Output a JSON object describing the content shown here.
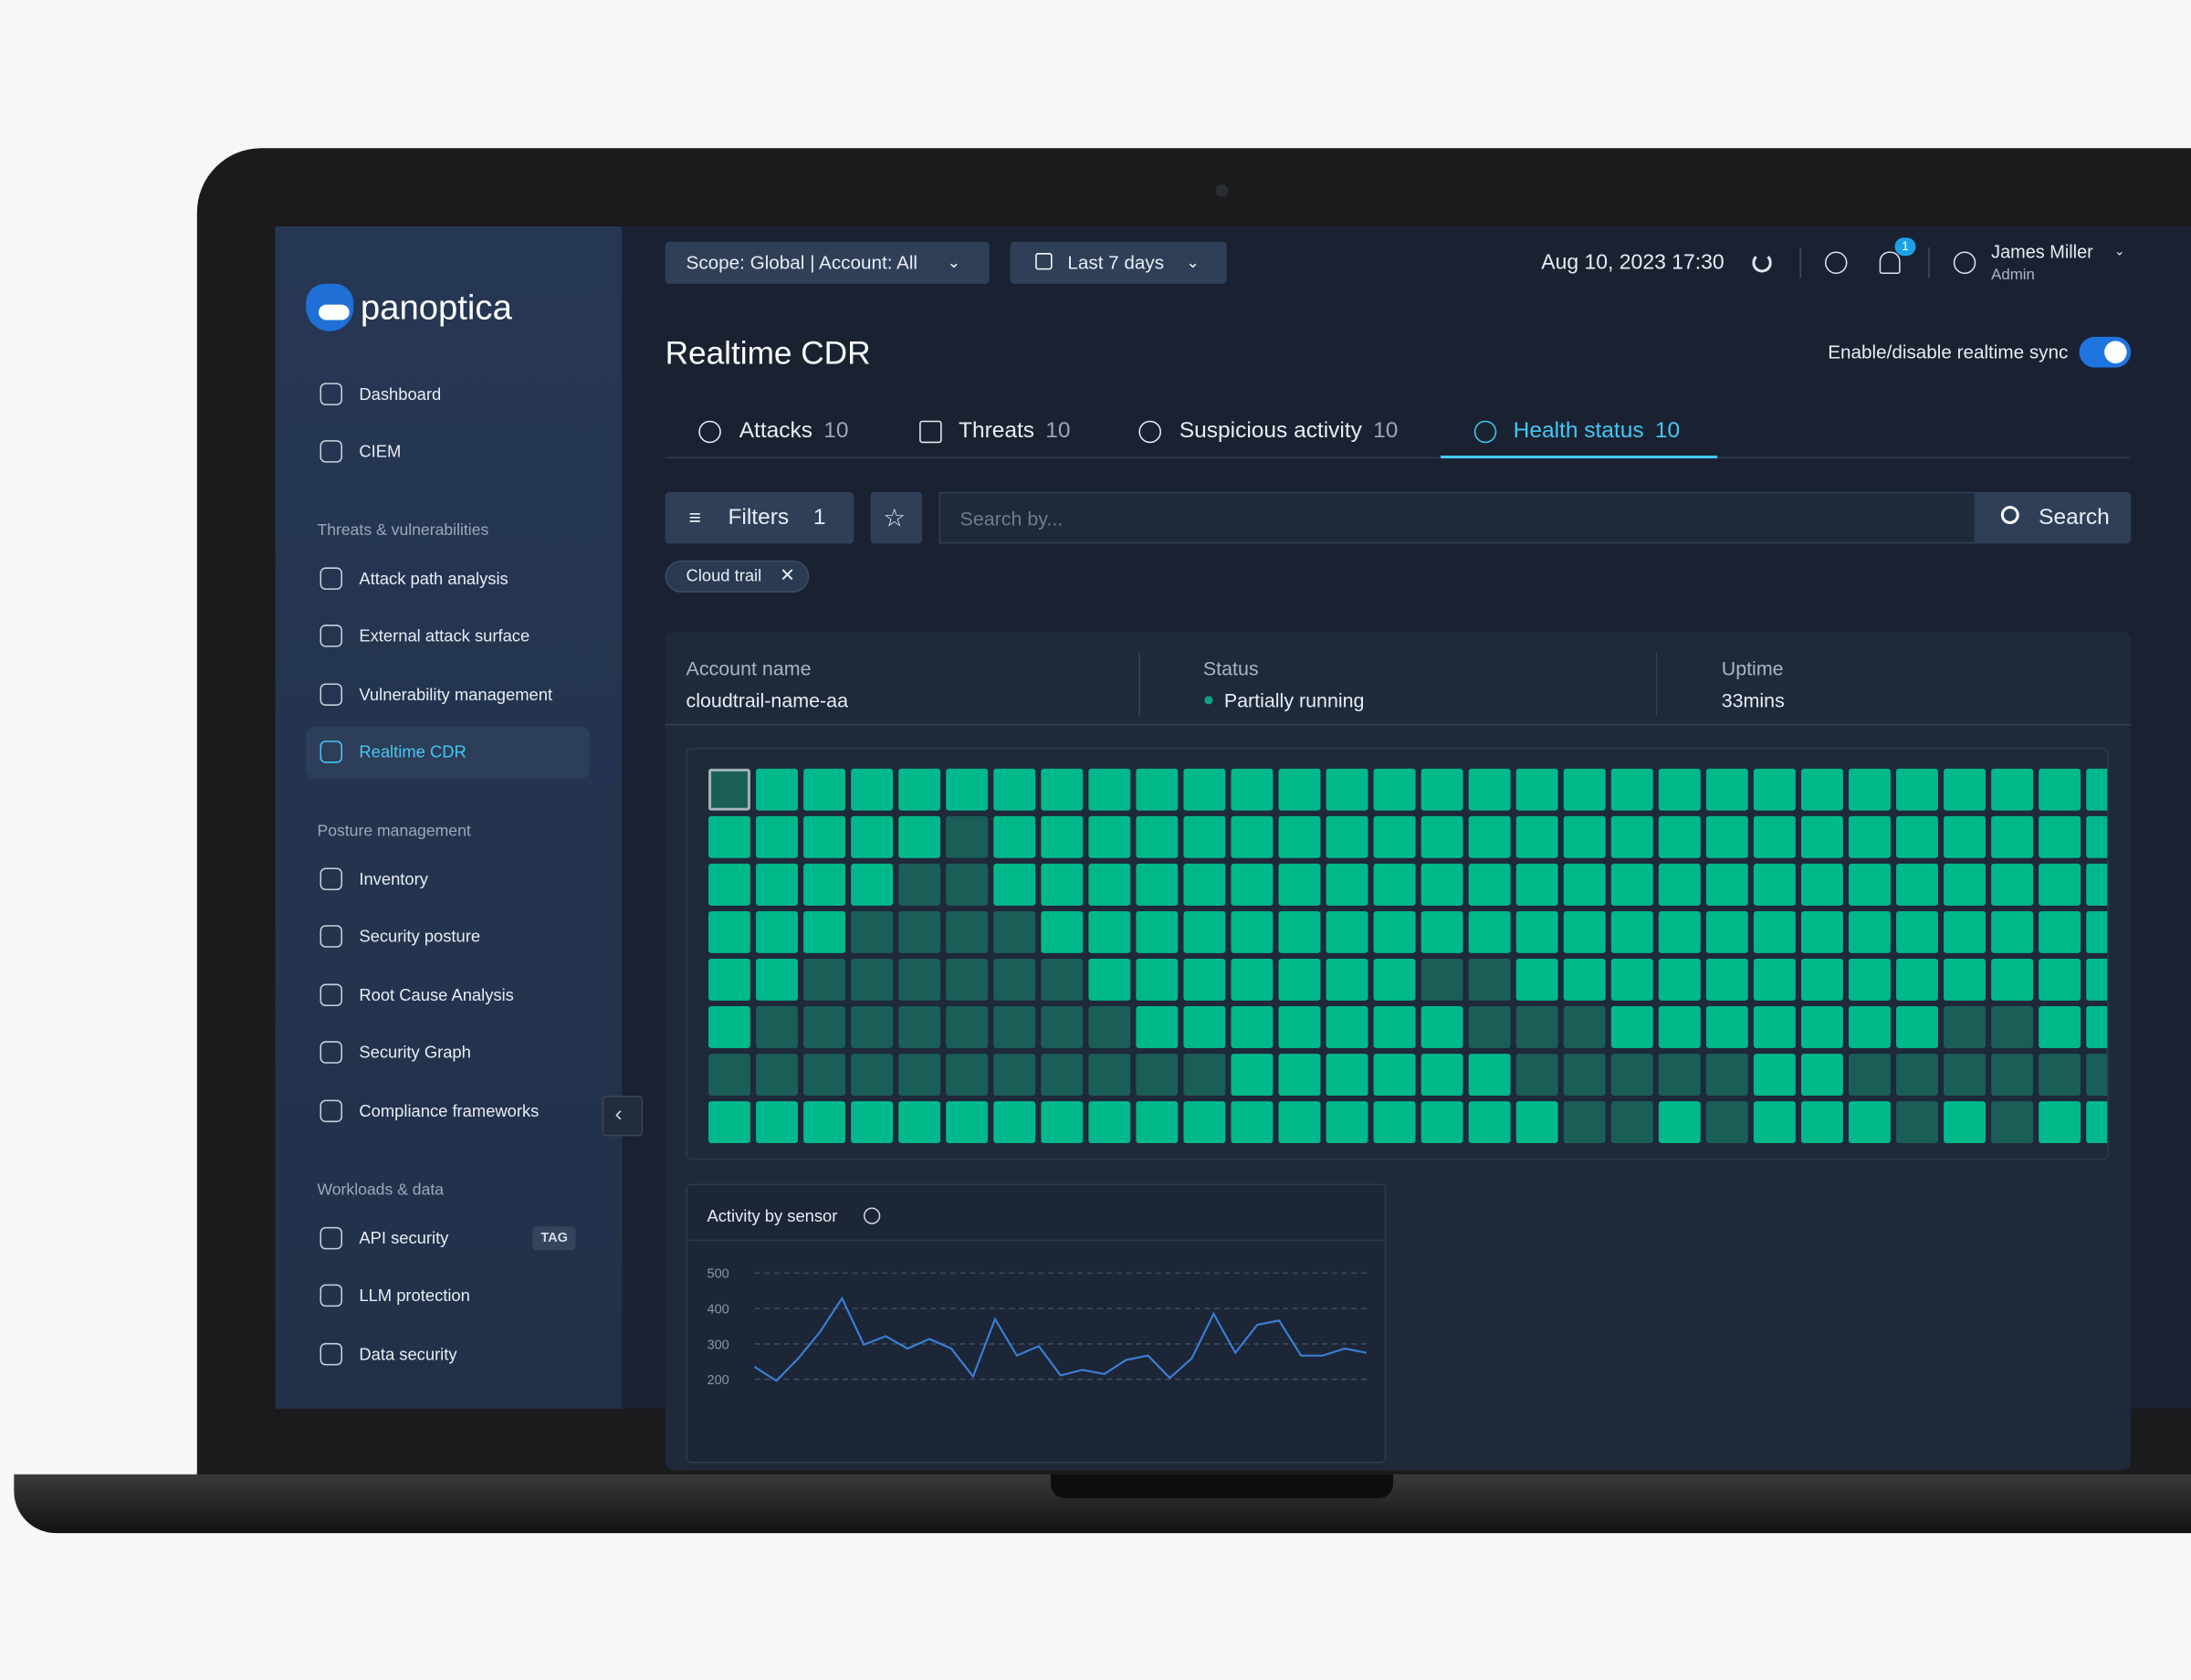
{
  "logo": "panoptica",
  "nav": [
    {
      "items": [
        "Dashboard",
        "CIEM"
      ]
    },
    {
      "section": "Threats & vulnerabilities",
      "items": [
        "Attack path analysis",
        "External attack surface",
        "Vulnerability management",
        "Realtime CDR"
      ]
    },
    {
      "section": "Posture management",
      "items": [
        "Inventory",
        "Security posture",
        "Root Cause Analysis",
        "Security Graph",
        "Compliance frameworks"
      ]
    },
    {
      "section": "Workloads & data",
      "items": [
        "API security",
        "LLM protection",
        "Data security"
      ]
    }
  ],
  "nav_badge": "TAG",
  "topbar": {
    "scope": "Scope: Global | Account: All",
    "range": "Last 7 days",
    "datetime": "Aug 10, 2023 17:30",
    "notifications": 1,
    "user": "James Miller",
    "role": "Admin"
  },
  "page": {
    "title": "Realtime CDR",
    "sync_label": "Enable/disable realtime sync"
  },
  "tabs": [
    {
      "label": "Attacks",
      "count": 10
    },
    {
      "label": "Threats",
      "count": 10
    },
    {
      "label": "Suspicious activity",
      "count": 10
    },
    {
      "label": "Health status",
      "count": 10
    }
  ],
  "filters": {
    "label": "Filters",
    "count": 1,
    "placeholder": "Search by...",
    "button": "Search",
    "chip": "Cloud trail"
  },
  "table": {
    "headers": [
      "Account name",
      "Status",
      "Uptime"
    ],
    "row": [
      "cloudtrail-name-aa",
      "Partially running",
      "33mins"
    ]
  },
  "health_grid": {
    "rows": [
      [
        0,
        1,
        1,
        1,
        1,
        1,
        1,
        1,
        1,
        1,
        1,
        1,
        1,
        1,
        1,
        1,
        1,
        1,
        1,
        1,
        1,
        1,
        1,
        1,
        1,
        1,
        1,
        1,
        1,
        1
      ],
      [
        1,
        1,
        1,
        1,
        1,
        0,
        1,
        1,
        1,
        1,
        1,
        1,
        1,
        1,
        1,
        1,
        1,
        1,
        1,
        1,
        1,
        1,
        1,
        1,
        1,
        1,
        1,
        1,
        1,
        1
      ],
      [
        1,
        1,
        1,
        1,
        0,
        0,
        1,
        1,
        1,
        1,
        1,
        1,
        1,
        1,
        1,
        1,
        1,
        1,
        1,
        1,
        1,
        1,
        1,
        1,
        1,
        1,
        1,
        1,
        1,
        1
      ],
      [
        1,
        1,
        1,
        0,
        0,
        0,
        0,
        1,
        1,
        1,
        1,
        1,
        1,
        1,
        1,
        1,
        1,
        1,
        1,
        1,
        1,
        1,
        1,
        1,
        1,
        1,
        1,
        1,
        1,
        1
      ],
      [
        1,
        1,
        0,
        0,
        0,
        0,
        0,
        0,
        1,
        1,
        1,
        1,
        1,
        1,
        1,
        0,
        0,
        1,
        1,
        1,
        1,
        1,
        1,
        1,
        1,
        1,
        1,
        1,
        1,
        1
      ],
      [
        1,
        0,
        0,
        0,
        0,
        0,
        0,
        0,
        0,
        1,
        1,
        1,
        1,
        1,
        1,
        1,
        0,
        0,
        0,
        1,
        1,
        1,
        1,
        1,
        1,
        1,
        0,
        0,
        1,
        1
      ],
      [
        0,
        0,
        0,
        0,
        0,
        0,
        0,
        0,
        0,
        0,
        0,
        1,
        1,
        1,
        1,
        1,
        1,
        0,
        0,
        0,
        0,
        0,
        1,
        1,
        0,
        0,
        0,
        0,
        0,
        0
      ],
      [
        1,
        1,
        1,
        1,
        1,
        1,
        1,
        1,
        1,
        1,
        1,
        1,
        1,
        1,
        1,
        1,
        1,
        1,
        0,
        0,
        1,
        0,
        1,
        1,
        1,
        0,
        1,
        0,
        1,
        1
      ]
    ]
  },
  "chart_data": {
    "type": "line",
    "title": "Activity by sensor",
    "values": [
      235,
      196,
      259,
      334,
      429,
      298,
      322,
      287,
      314,
      287,
      208,
      370,
      267,
      294,
      211,
      227,
      215,
      255,
      267,
      204,
      259,
      385,
      275,
      354,
      366,
      267,
      267,
      287,
      275
    ],
    "color": "#3b7fd6",
    "ylim": [
      150,
      500
    ],
    "yticks": [
      500,
      400,
      300,
      200
    ],
    "grid": true
  }
}
